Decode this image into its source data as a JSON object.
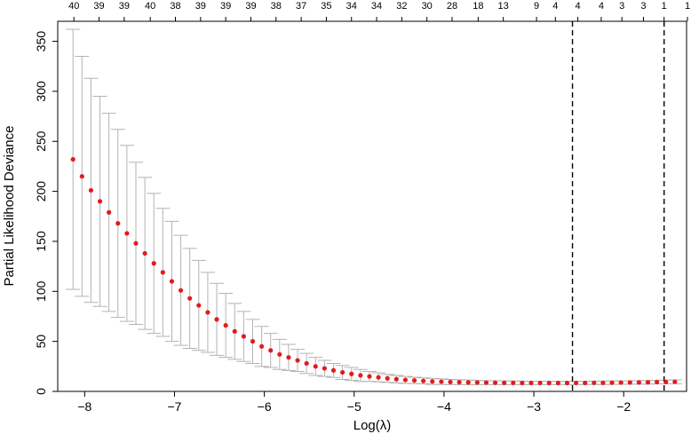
{
  "chart_data": {
    "type": "scatter",
    "title": "",
    "xlabel": "Log(λ)",
    "ylabel": "Partial Likelihood Deviance",
    "xlim": [
      -8.3,
      -1.3
    ],
    "ylim": [
      0,
      370
    ],
    "x_ticks": [
      -8,
      -7,
      -6,
      -5,
      -4,
      -3,
      -2
    ],
    "x_tick_labels": [
      "−8",
      "−7",
      "−6",
      "−5",
      "−4",
      "−3",
      "−2"
    ],
    "y_ticks": [
      0,
      50,
      100,
      150,
      200,
      250,
      300,
      350
    ],
    "y_tick_labels": [
      "0",
      "50",
      "100",
      "150",
      "200",
      "250",
      "300",
      "350"
    ],
    "top_labels": [
      {
        "x": -8.12,
        "label": "40"
      },
      {
        "x": -7.84,
        "label": "39"
      },
      {
        "x": -7.56,
        "label": "39"
      },
      {
        "x": -7.27,
        "label": "40"
      },
      {
        "x": -6.99,
        "label": "38"
      },
      {
        "x": -6.71,
        "label": "39"
      },
      {
        "x": -6.43,
        "label": "39"
      },
      {
        "x": -6.15,
        "label": "39"
      },
      {
        "x": -5.87,
        "label": "38"
      },
      {
        "x": -5.59,
        "label": "37"
      },
      {
        "x": -5.31,
        "label": "35"
      },
      {
        "x": -5.03,
        "label": "34"
      },
      {
        "x": -4.75,
        "label": "34"
      },
      {
        "x": -4.47,
        "label": "32"
      },
      {
        "x": -4.19,
        "label": "30"
      },
      {
        "x": -3.91,
        "label": "28"
      },
      {
        "x": -3.62,
        "label": "18"
      },
      {
        "x": -3.34,
        "label": "13"
      },
      {
        "x": -2.97,
        "label": "9"
      },
      {
        "x": -2.76,
        "label": "4"
      },
      {
        "x": -2.51,
        "label": "4"
      },
      {
        "x": -2.25,
        "label": "4"
      },
      {
        "x": -2.02,
        "label": "3"
      },
      {
        "x": -1.78,
        "label": "3"
      },
      {
        "x": -1.55,
        "label": "1"
      },
      {
        "x": -1.29,
        "label": "1"
      }
    ],
    "x": [
      -8.13,
      -8.03,
      -7.93,
      -7.83,
      -7.73,
      -7.63,
      -7.53,
      -7.43,
      -7.33,
      -7.23,
      -7.13,
      -7.03,
      -6.93,
      -6.83,
      -6.73,
      -6.63,
      -6.53,
      -6.43,
      -6.33,
      -6.23,
      -6.13,
      -6.03,
      -5.93,
      -5.83,
      -5.73,
      -5.63,
      -5.53,
      -5.43,
      -5.33,
      -5.23,
      -5.13,
      -5.03,
      -4.93,
      -4.83,
      -4.73,
      -4.63,
      -4.53,
      -4.43,
      -4.33,
      -4.23,
      -4.13,
      -4.03,
      -3.93,
      -3.83,
      -3.73,
      -3.63,
      -3.53,
      -3.43,
      -3.33,
      -3.23,
      -3.13,
      -3.03,
      -2.93,
      -2.83,
      -2.73,
      -2.63,
      -2.53,
      -2.43,
      -2.33,
      -2.23,
      -2.13,
      -2.03,
      -1.93,
      -1.83,
      -1.73,
      -1.63,
      -1.53,
      -1.43
    ],
    "y": [
      232,
      215,
      201,
      190,
      179,
      168,
      158,
      148,
      138,
      128,
      119,
      110,
      101,
      93,
      86,
      79,
      72,
      66,
      60,
      55,
      50,
      45,
      41,
      37,
      34,
      31,
      28,
      25,
      23,
      21,
      19,
      17.5,
      16,
      15,
      14,
      13,
      12.2,
      11.5,
      11,
      10.5,
      10,
      9.7,
      9.4,
      9.2,
      9.0,
      8.9,
      8.8,
      8.7,
      8.6,
      8.6,
      8.5,
      8.5,
      8.5,
      8.4,
      8.4,
      8.4,
      8.5,
      8.5,
      8.6,
      8.6,
      8.7,
      8.8,
      8.9,
      9.0,
      9.1,
      9.3,
      9.4,
      9.6
    ],
    "upper": [
      362,
      335,
      313,
      295,
      278,
      262,
      246,
      229,
      214,
      198,
      183,
      170,
      156,
      143,
      131,
      119,
      108,
      98,
      88,
      80,
      72,
      65,
      58,
      52,
      47,
      42,
      38,
      34,
      31,
      28,
      26,
      24,
      22,
      20,
      18.5,
      17,
      16,
      15,
      14.2,
      13.5,
      13,
      12.5,
      12,
      11.6,
      11.3,
      11,
      10.8,
      10.6,
      10.5,
      10.4,
      10.3,
      10.2,
      10.2,
      10.1,
      10.1,
      10.1,
      10.1,
      10.2,
      10.3,
      10.3,
      10.4,
      10.5,
      10.6,
      10.8,
      10.9,
      11.1,
      11.3,
      11.5
    ],
    "lower": [
      102,
      95,
      89,
      85,
      80,
      74,
      70,
      67,
      62,
      58,
      55,
      50,
      46,
      43,
      41,
      39,
      36,
      34,
      32,
      30,
      28,
      25,
      24,
      22,
      21,
      20,
      18,
      16,
      15,
      14,
      12,
      11,
      10,
      10,
      9.5,
      9,
      8.4,
      8,
      7.8,
      7.5,
      7,
      6.9,
      6.8,
      6.8,
      6.7,
      6.8,
      6.8,
      6.8,
      6.7,
      6.8,
      6.7,
      6.8,
      6.8,
      6.7,
      6.7,
      6.7,
      6.9,
      6.8,
      6.9,
      6.9,
      7.0,
      7.1,
      7.2,
      7.2,
      7.3,
      7.5,
      7.5,
      7.7
    ],
    "vlines": [
      -2.57,
      -1.55
    ],
    "grid": false,
    "colors": {
      "points": "#e41a1c",
      "errorbars": "#b3b3b3",
      "vlines": "#000000"
    }
  }
}
